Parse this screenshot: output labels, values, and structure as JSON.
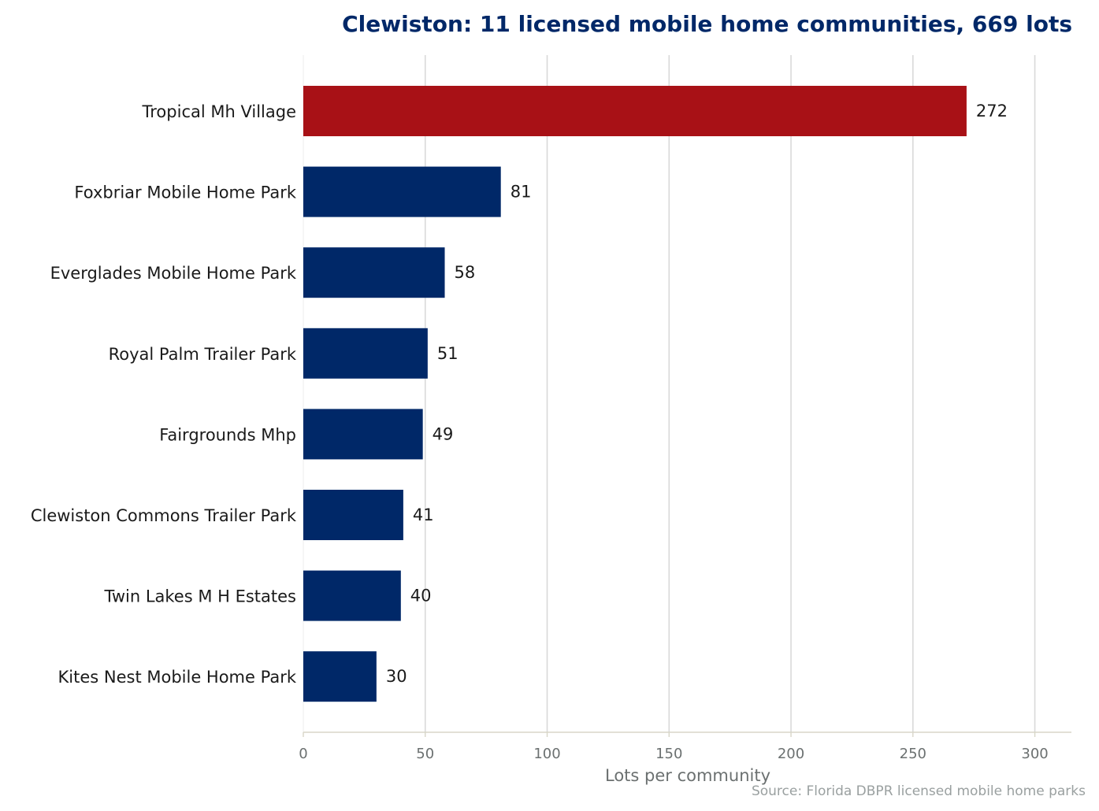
{
  "chart_data": {
    "type": "bar",
    "orientation": "horizontal",
    "title": "Clewiston: 11 licensed mobile home communities, 669 lots",
    "xlabel": "Lots per community",
    "ylabel": "",
    "source": "Source: Florida DBPR licensed mobile home parks",
    "categories": [
      "Tropical Mh Village",
      "Foxbriar Mobile Home Park",
      "Everglades Mobile Home Park",
      "Royal Palm Trailer Park",
      "Fairgrounds Mhp",
      "Clewiston Commons Trailer Park",
      "Twin Lakes M H Estates",
      "Kites Nest Mobile Home Park"
    ],
    "values": [
      272,
      81,
      58,
      51,
      49,
      41,
      40,
      30
    ],
    "xlim": [
      0,
      315
    ],
    "xticks": [
      0,
      50,
      100,
      150,
      200,
      250,
      300
    ],
    "grid": true,
    "colors": {
      "highlight": "#a81116",
      "bar": "#002868",
      "title": "#002868",
      "grid": "#d9d9d9",
      "axis": "#d8d6c8"
    }
  }
}
